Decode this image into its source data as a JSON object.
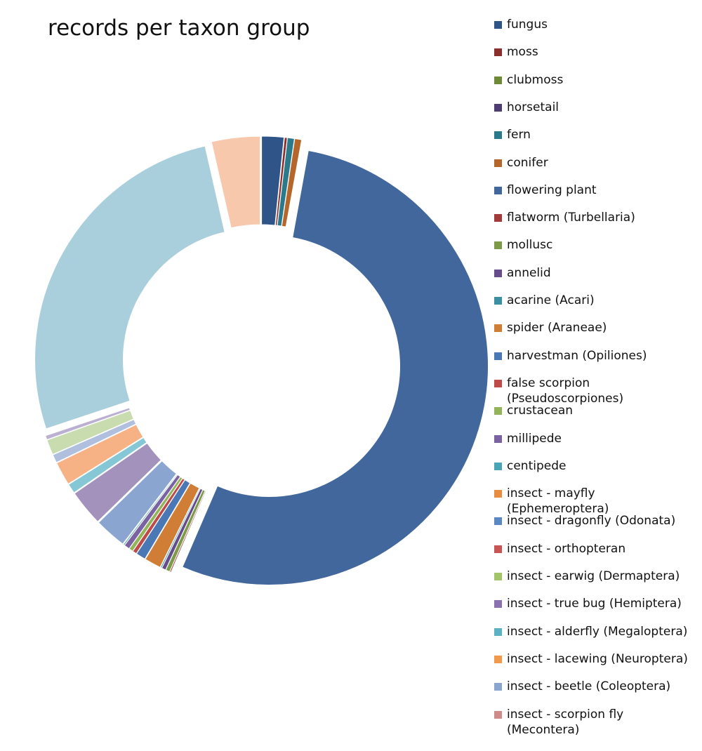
{
  "chart_data": {
    "type": "donut",
    "title": "records per taxon group",
    "legend_position": "right",
    "units": "percent of records (estimated)",
    "slices": [
      {
        "name": "fungus",
        "value": 1.6,
        "color": "#2e5488"
      },
      {
        "name": "moss",
        "value": 0.2,
        "color": "#8b2e2e"
      },
      {
        "name": "clubmoss",
        "value": 0.0,
        "color": "#6f8a37"
      },
      {
        "name": "horsetail",
        "value": 0.0,
        "color": "#4e3d70"
      },
      {
        "name": "fern",
        "value": 0.5,
        "color": "#2b7a8c"
      },
      {
        "name": "conifer",
        "value": 0.5,
        "color": "#b5662a"
      },
      {
        "name": "flowering plant",
        "value": 52.5,
        "color": "#41679c"
      },
      {
        "name": "flatworm (Turbellaria)",
        "value": 0.1,
        "color": "#a23a3a"
      },
      {
        "name": "mollusc",
        "value": 0.3,
        "color": "#7c9a48"
      },
      {
        "name": "annelid",
        "value": 0.3,
        "color": "#654d8b"
      },
      {
        "name": "acarine (Acari)",
        "value": 0.1,
        "color": "#3a8fa3"
      },
      {
        "name": "spider (Araneae)",
        "value": 1.2,
        "color": "#d07d35"
      },
      {
        "name": "harvestman (Opiliones)",
        "value": 0.7,
        "color": "#4a78b5"
      },
      {
        "name": "false scorpion (Pseudoscorpiones)",
        "value": 0.3,
        "color": "#be4a4a"
      },
      {
        "name": "crustacean",
        "value": 0.3,
        "color": "#94b45a"
      },
      {
        "name": "millipede",
        "value": 0.4,
        "color": "#7a62a3"
      },
      {
        "name": "centipede",
        "value": 0.1,
        "color": "#4aa5b8"
      },
      {
        "name": "insect - mayfly (Ephemeroptera)",
        "value": 0.0,
        "color": "#e88d40"
      },
      {
        "name": "insect - dragonfly (Odonata)",
        "value": 0.0,
        "color": "#5b87c2"
      },
      {
        "name": "insect - orthopteran",
        "value": 0.0,
        "color": "#c95454"
      },
      {
        "name": "insect - earwig (Dermaptera)",
        "value": 0.0,
        "color": "#a4c46a"
      },
      {
        "name": "insect - true bug (Hemiptera)",
        "value": 0.0,
        "color": "#8a72b0"
      },
      {
        "name": "insect - alderfly (Megaloptera)",
        "value": 0.0,
        "color": "#5bb2c5"
      },
      {
        "name": "insect - lacewing (Neuroptera)",
        "value": 0.0,
        "color": "#f09a4a"
      },
      {
        "name": "insect - beetle (Coleoptera)",
        "value": 2.3,
        "color": "#8aa5d0"
      },
      {
        "name": "insect - scorpion fly (Mecontera)",
        "value": 0.0,
        "color": "#d08a8a"
      },
      {
        "name": "",
        "value": 2.6,
        "color": "#a393bc"
      },
      {
        "name": "",
        "value": 0.7,
        "color": "#86c7d6"
      },
      {
        "name": "",
        "value": 1.7,
        "color": "#f6b184"
      },
      {
        "name": "",
        "value": 0.6,
        "color": "#b1bfdf"
      },
      {
        "name": "",
        "value": 1.1,
        "color": "#c9dcb0"
      },
      {
        "name": "",
        "value": 0.3,
        "color": "#bcb0d2"
      },
      {
        "name": "",
        "value": 26.0,
        "color": "#aacfdc"
      },
      {
        "name": "",
        "value": 3.5,
        "color": "#f8c8ad"
      }
    ]
  }
}
